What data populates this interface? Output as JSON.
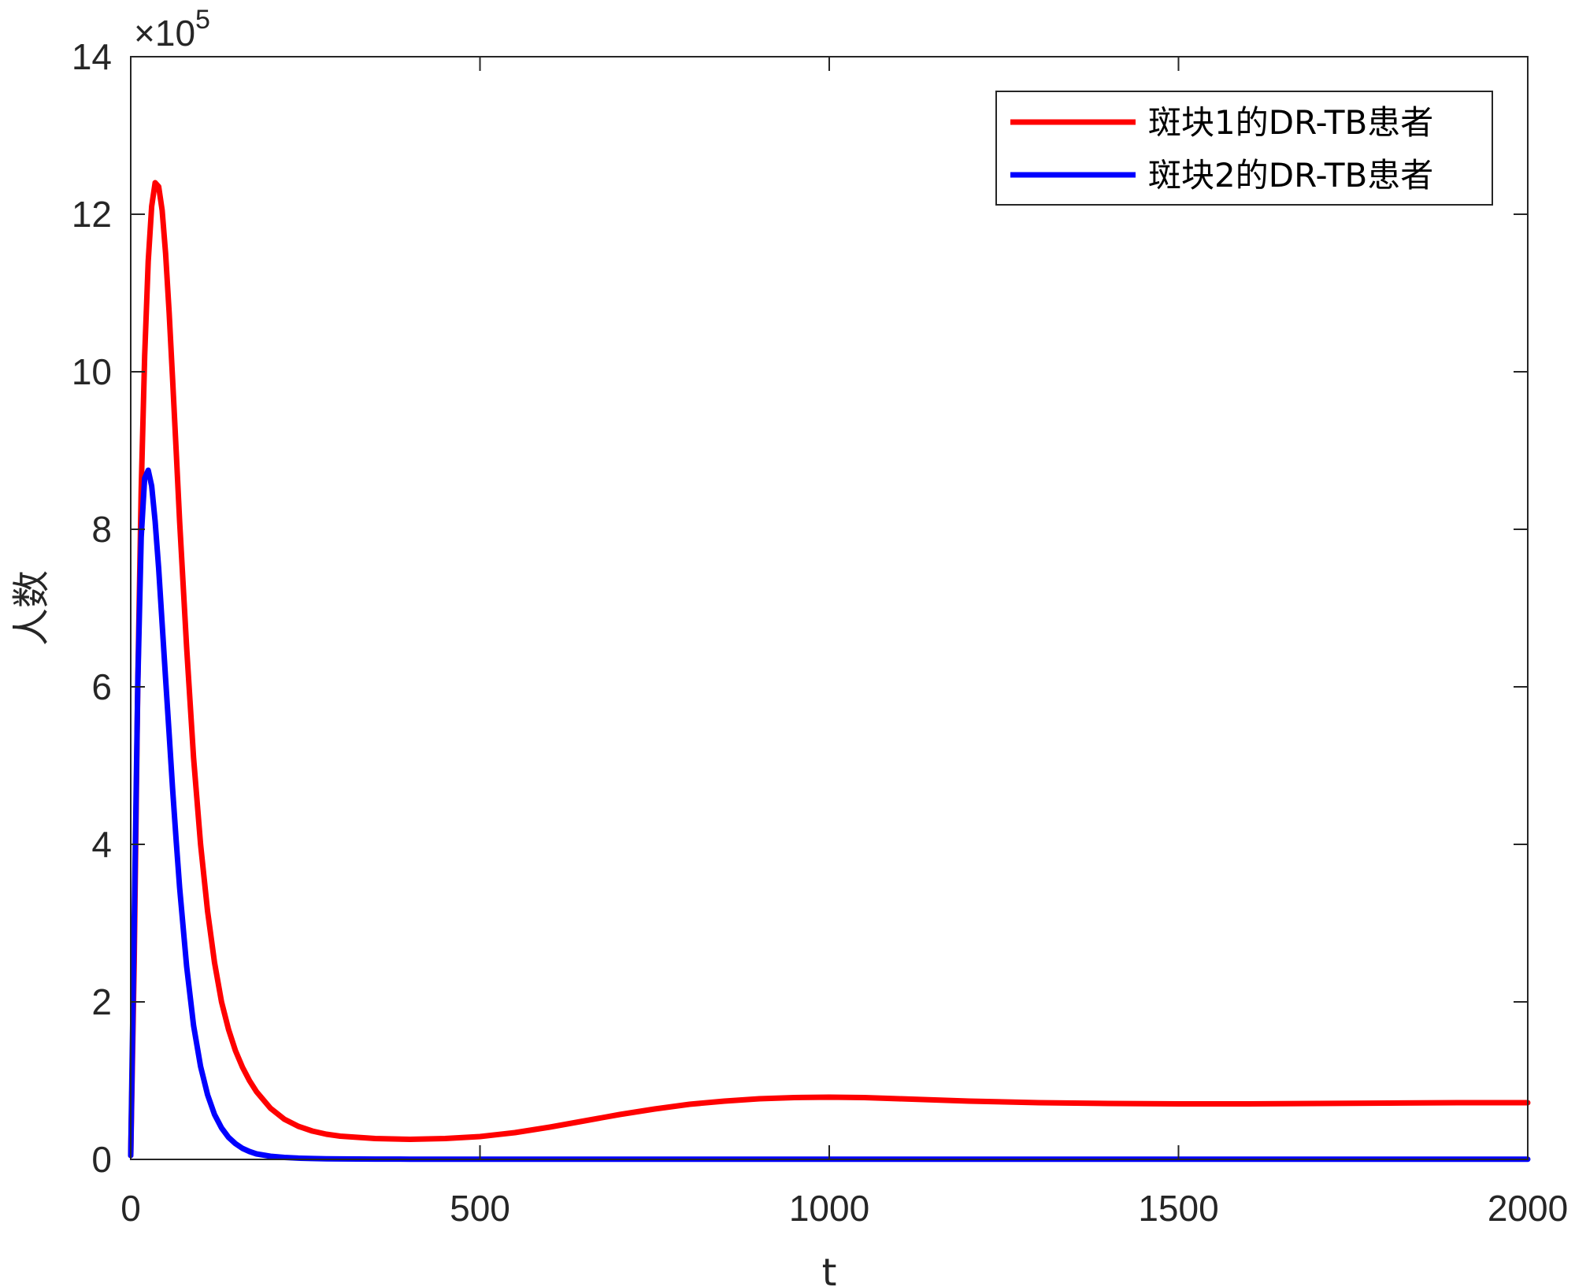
{
  "chart_data": {
    "type": "line",
    "xlabel": "t",
    "ylabel": "人数",
    "xlim": [
      0,
      2000
    ],
    "ylim": [
      0,
      1400000
    ],
    "xticks": [
      0,
      500,
      1000,
      1500,
      2000
    ],
    "yticks": [
      0,
      200000,
      400000,
      600000,
      800000,
      1000000,
      1200000,
      1400000
    ],
    "ytick_labels": [
      "0",
      "2",
      "4",
      "6",
      "8",
      "10",
      "12",
      "14"
    ],
    "y_multiplier": {
      "prefix": "×10",
      "exponent": "5"
    },
    "grid": false,
    "legend_position": "top-right",
    "series": [
      {
        "name": "斑块1的DR-TB患者",
        "color": "#ff0000",
        "x": [
          0,
          5,
          10,
          15,
          20,
          25,
          30,
          35,
          40,
          45,
          50,
          55,
          60,
          65,
          70,
          80,
          90,
          100,
          110,
          120,
          130,
          140,
          150,
          160,
          170,
          180,
          200,
          220,
          240,
          260,
          280,
          300,
          350,
          400,
          450,
          500,
          550,
          600,
          650,
          700,
          750,
          800,
          850,
          900,
          950,
          1000,
          1050,
          1100,
          1200,
          1300,
          1400,
          1500,
          1600,
          1700,
          1800,
          1900,
          2000
        ],
        "y": [
          5000,
          250000,
          600000,
          850000,
          1020000,
          1140000,
          1210000,
          1240000,
          1235000,
          1205000,
          1150000,
          1075000,
          990000,
          900000,
          810000,
          650000,
          510000,
          400000,
          315000,
          250000,
          200000,
          165000,
          138000,
          117000,
          100000,
          86000,
          65000,
          51000,
          42000,
          36000,
          32000,
          29500,
          26500,
          25500,
          26500,
          29000,
          34000,
          41000,
          49000,
          57000,
          64000,
          70000,
          74000,
          77000,
          78500,
          79000,
          78500,
          77000,
          74000,
          72000,
          71000,
          70500,
          70500,
          71000,
          71500,
          72000,
          72000
        ]
      },
      {
        "name": "斑块2的DR-TB患者",
        "color": "#0000ff",
        "x": [
          0,
          5,
          10,
          15,
          20,
          25,
          30,
          35,
          40,
          45,
          50,
          55,
          60,
          65,
          70,
          80,
          90,
          100,
          110,
          120,
          130,
          140,
          150,
          160,
          170,
          180,
          200,
          220,
          240,
          260,
          280,
          300,
          350,
          400,
          500,
          600,
          800,
          1000,
          1500,
          2000
        ],
        "y": [
          5000,
          300000,
          600000,
          790000,
          865000,
          875000,
          855000,
          810000,
          750000,
          680000,
          610000,
          540000,
          470000,
          405000,
          345000,
          245000,
          170000,
          118000,
          82000,
          57000,
          40000,
          28000,
          20000,
          14000,
          10000,
          7000,
          4000,
          2500,
          1600,
          1100,
          800,
          600,
          400,
          300,
          200,
          200,
          200,
          200,
          200,
          200
        ]
      }
    ]
  }
}
